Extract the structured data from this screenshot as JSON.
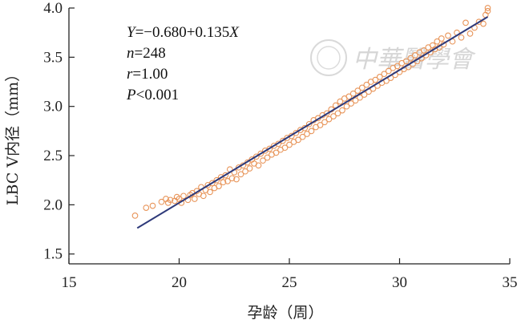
{
  "chart_data": {
    "type": "scatter",
    "title": "",
    "xlabel": "孕龄（周）",
    "ylabel": "LBC V内径（mm）",
    "xlim": [
      15,
      35
    ],
    "ylim": [
      1.4,
      4.0
    ],
    "xticks": [
      15,
      20,
      25,
      30,
      35
    ],
    "yticks": [
      1.5,
      2.0,
      2.5,
      3.0,
      3.5,
      4.0
    ],
    "x_tick_labels": [
      "15",
      "20",
      "25",
      "30",
      "35"
    ],
    "y_tick_labels": [
      "1.5",
      "2.0",
      "2.5",
      "3.0",
      "3.5",
      "4.0"
    ],
    "grid": false,
    "point_color": "#e8955a",
    "line_color": "#2e3a7a",
    "fit_line": {
      "intercept": -0.68,
      "slope": 0.135,
      "x_range": [
        18.1,
        34.0
      ]
    },
    "annotations": [
      {
        "prefix": "",
        "italic": "Y",
        "rest": "=−0.680+0.135",
        "italic2": "X"
      },
      {
        "prefix": "",
        "italic": "n",
        "rest": "=248",
        "italic2": ""
      },
      {
        "prefix": "",
        "italic": "r",
        "rest": "=1.00",
        "italic2": ""
      },
      {
        "prefix": "",
        "italic": "P",
        "rest": "<0.001",
        "italic2": ""
      }
    ],
    "points": [
      [
        18.0,
        1.89
      ],
      [
        18.5,
        1.97
      ],
      [
        18.8,
        1.99
      ],
      [
        19.2,
        2.03
      ],
      [
        19.4,
        2.06
      ],
      [
        19.5,
        2.02
      ],
      [
        19.6,
        2.05
      ],
      [
        19.8,
        2.04
      ],
      [
        19.9,
        2.08
      ],
      [
        20.0,
        2.06
      ],
      [
        20.1,
        2.02
      ],
      [
        20.2,
        2.09
      ],
      [
        20.4,
        2.05
      ],
      [
        20.5,
        2.1
      ],
      [
        20.6,
        2.12
      ],
      [
        20.7,
        2.06
      ],
      [
        20.8,
        2.14
      ],
      [
        20.9,
        2.11
      ],
      [
        21.0,
        2.18
      ],
      [
        21.1,
        2.09
      ],
      [
        21.2,
        2.15
      ],
      [
        21.3,
        2.2
      ],
      [
        21.4,
        2.13
      ],
      [
        21.5,
        2.22
      ],
      [
        21.6,
        2.17
      ],
      [
        21.7,
        2.25
      ],
      [
        21.8,
        2.19
      ],
      [
        21.9,
        2.28
      ],
      [
        22.0,
        2.23
      ],
      [
        22.1,
        2.3
      ],
      [
        22.2,
        2.24
      ],
      [
        22.3,
        2.36
      ],
      [
        22.4,
        2.27
      ],
      [
        22.5,
        2.33
      ],
      [
        22.6,
        2.26
      ],
      [
        22.7,
        2.38
      ],
      [
        22.8,
        2.31
      ],
      [
        22.9,
        2.4
      ],
      [
        23.0,
        2.34
      ],
      [
        23.1,
        2.43
      ],
      [
        23.2,
        2.37
      ],
      [
        23.3,
        2.46
      ],
      [
        23.4,
        2.42
      ],
      [
        23.5,
        2.49
      ],
      [
        23.6,
        2.4
      ],
      [
        23.7,
        2.52
      ],
      [
        23.8,
        2.45
      ],
      [
        23.9,
        2.55
      ],
      [
        24.0,
        2.48
      ],
      [
        24.1,
        2.57
      ],
      [
        24.2,
        2.51
      ],
      [
        24.3,
        2.6
      ],
      [
        24.4,
        2.53
      ],
      [
        24.5,
        2.62
      ],
      [
        24.6,
        2.56
      ],
      [
        24.7,
        2.65
      ],
      [
        24.8,
        2.58
      ],
      [
        24.9,
        2.68
      ],
      [
        25.0,
        2.61
      ],
      [
        25.1,
        2.7
      ],
      [
        25.2,
        2.64
      ],
      [
        25.3,
        2.73
      ],
      [
        25.4,
        2.66
      ],
      [
        25.5,
        2.76
      ],
      [
        25.6,
        2.69
      ],
      [
        25.7,
        2.78
      ],
      [
        25.8,
        2.72
      ],
      [
        25.9,
        2.82
      ],
      [
        26.0,
        2.75
      ],
      [
        26.1,
        2.86
      ],
      [
        26.2,
        2.79
      ],
      [
        26.3,
        2.88
      ],
      [
        26.4,
        2.81
      ],
      [
        26.5,
        2.91
      ],
      [
        26.6,
        2.84
      ],
      [
        26.7,
        2.93
      ],
      [
        26.8,
        2.87
      ],
      [
        26.9,
        2.97
      ],
      [
        27.0,
        2.9
      ],
      [
        27.1,
        3.01
      ],
      [
        27.2,
        2.93
      ],
      [
        27.3,
        3.05
      ],
      [
        27.4,
        2.96
      ],
      [
        27.5,
        3.08
      ],
      [
        27.6,
        3.0
      ],
      [
        27.7,
        3.1
      ],
      [
        27.8,
        3.03
      ],
      [
        27.9,
        3.13
      ],
      [
        28.0,
        3.06
      ],
      [
        28.1,
        3.16
      ],
      [
        28.2,
        3.09
      ],
      [
        28.3,
        3.19
      ],
      [
        28.4,
        3.12
      ],
      [
        28.5,
        3.22
      ],
      [
        28.6,
        3.15
      ],
      [
        28.7,
        3.25
      ],
      [
        28.8,
        3.18
      ],
      [
        28.9,
        3.27
      ],
      [
        29.0,
        3.21
      ],
      [
        29.1,
        3.3
      ],
      [
        29.2,
        3.24
      ],
      [
        29.3,
        3.33
      ],
      [
        29.4,
        3.26
      ],
      [
        29.5,
        3.36
      ],
      [
        29.6,
        3.29
      ],
      [
        29.7,
        3.39
      ],
      [
        29.8,
        3.32
      ],
      [
        29.9,
        3.41
      ],
      [
        30.0,
        3.35
      ],
      [
        30.1,
        3.44
      ],
      [
        30.2,
        3.38
      ],
      [
        30.3,
        3.46
      ],
      [
        30.4,
        3.4
      ],
      [
        30.5,
        3.49
      ],
      [
        30.6,
        3.43
      ],
      [
        30.7,
        3.52
      ],
      [
        30.8,
        3.46
      ],
      [
        30.9,
        3.55
      ],
      [
        31.0,
        3.49
      ],
      [
        31.1,
        3.57
      ],
      [
        31.2,
        3.52
      ],
      [
        31.3,
        3.6
      ],
      [
        31.4,
        3.55
      ],
      [
        31.5,
        3.62
      ],
      [
        31.6,
        3.58
      ],
      [
        31.7,
        3.66
      ],
      [
        31.8,
        3.6
      ],
      [
        31.9,
        3.69
      ],
      [
        32.0,
        3.63
      ],
      [
        32.2,
        3.72
      ],
      [
        32.4,
        3.66
      ],
      [
        32.6,
        3.75
      ],
      [
        32.8,
        3.7
      ],
      [
        33.0,
        3.85
      ],
      [
        33.2,
        3.74
      ],
      [
        33.4,
        3.8
      ],
      [
        33.6,
        3.86
      ],
      [
        33.8,
        3.84
      ],
      [
        33.9,
        3.93
      ],
      [
        34.0,
        3.97
      ],
      [
        34.0,
        4.0
      ]
    ]
  },
  "watermark": {
    "text": "中華醫學會"
  }
}
